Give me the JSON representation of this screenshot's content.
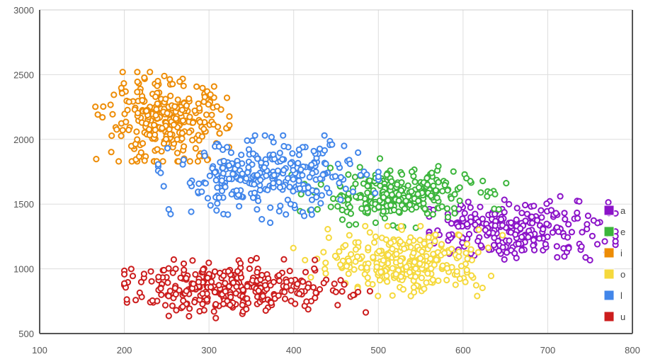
{
  "chart_data": {
    "type": "scatter",
    "title": "",
    "xlabel": "",
    "ylabel": "",
    "xlim": [
      100,
      800
    ],
    "ylim": [
      500,
      3000
    ],
    "x_ticks": [
      100,
      200,
      300,
      400,
      500,
      600,
      700,
      800
    ],
    "y_ticks": [
      500,
      1000,
      1500,
      2000,
      2500,
      3000
    ],
    "grid": true,
    "legend_position": "right",
    "marker": "hollow-circle",
    "series": [
      {
        "name": "a",
        "color": "#8b13c8",
        "cluster_center": [
          660,
          1300
        ],
        "spread": [
          55,
          110
        ],
        "x_range": [
          560,
          780
        ],
        "y_range": [
          1050,
          1560
        ],
        "approx_count": 260
      },
      {
        "name": "e",
        "color": "#3cb53c",
        "cluster_center": [
          520,
          1570
        ],
        "spread": [
          45,
          95
        ],
        "x_range": [
          300,
          690
        ],
        "y_range": [
          1230,
          1890
        ],
        "approx_count": 280
      },
      {
        "name": "i",
        "color": "#ed8c06",
        "cluster_center": [
          250,
          2130
        ],
        "spread": [
          35,
          160
        ],
        "x_range": [
          165,
          435
        ],
        "y_range": [
          1830,
          2520
        ],
        "approx_count": 300
      },
      {
        "name": "o",
        "color": "#f5d93d",
        "cluster_center": [
          535,
          1060
        ],
        "spread": [
          45,
          115
        ],
        "x_range": [
          270,
          650
        ],
        "y_range": [
          790,
          1330
        ],
        "approx_count": 290
      },
      {
        "name": "l",
        "color": "#4286ea",
        "cluster_center": [
          370,
          1700
        ],
        "spread": [
          55,
          140
        ],
        "x_range": [
          240,
          500
        ],
        "y_range": [
          1300,
          2030
        ],
        "approx_count": 300
      },
      {
        "name": "u",
        "color": "#cc1d1d",
        "cluster_center": [
          330,
          850
        ],
        "spread": [
          65,
          90
        ],
        "x_range": [
          200,
          500
        ],
        "y_range": [
          620,
          1130
        ],
        "approx_count": 320
      }
    ]
  }
}
